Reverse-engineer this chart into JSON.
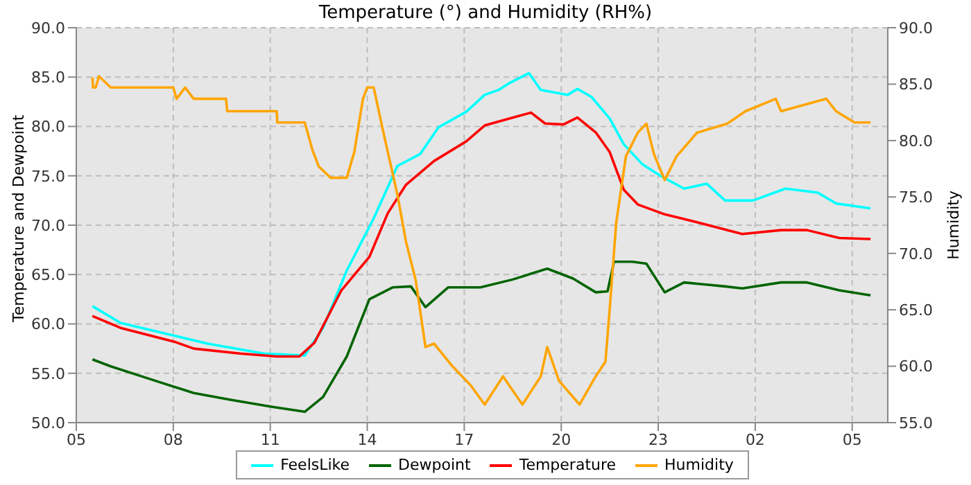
{
  "chart_data": {
    "type": "line",
    "title": "Temperature (°) and Humidity (RH%)",
    "ylabel": "Temperature and Dewpoint",
    "y2label": "Humidity",
    "xlim": [
      "--01-01T05:00",
      "--01-02T06:06"
    ],
    "xticks": [
      {
        "value": "--01-01T05:00",
        "label": "05"
      },
      {
        "value": "--01-01T08:00",
        "label": "08"
      },
      {
        "value": "--01-01T11:00",
        "label": "11"
      },
      {
        "value": "--01-01T14:00",
        "label": "14"
      },
      {
        "value": "--01-01T17:00",
        "label": "17"
      },
      {
        "value": "--01-01T20:00",
        "label": "20"
      },
      {
        "value": "--01-01T23:00",
        "label": "23"
      },
      {
        "value": "--01-02T02:00",
        "label": "02"
      },
      {
        "value": "--01-02T05:00",
        "label": "05"
      }
    ],
    "ylim": [
      50,
      90
    ],
    "yticks": [
      {
        "value": 50,
        "label": "50.0"
      },
      {
        "value": 55,
        "label": "55.0"
      },
      {
        "value": 60,
        "label": "60.0"
      },
      {
        "value": 65,
        "label": "65.0"
      },
      {
        "value": 70,
        "label": "70.0"
      },
      {
        "value": 75,
        "label": "75.0"
      },
      {
        "value": 80,
        "label": "80.0"
      },
      {
        "value": 85,
        "label": "85.0"
      },
      {
        "value": 90,
        "label": "90.0"
      }
    ],
    "y2lim": [
      55,
      90
    ],
    "y2ticks": [
      {
        "value": 55,
        "label": "55.0"
      },
      {
        "value": 60,
        "label": "60.0"
      },
      {
        "value": 65,
        "label": "65.0"
      },
      {
        "value": 70,
        "label": "70.0"
      },
      {
        "value": 75,
        "label": "75.0"
      },
      {
        "value": 80,
        "label": "80.0"
      },
      {
        "value": 85,
        "label": "85.0"
      },
      {
        "value": 90,
        "label": "90.0"
      }
    ],
    "grid": true,
    "legend": "bottom",
    "marker": "none",
    "line_style": "solid",
    "series": [
      {
        "name": "FeelsLike",
        "color": "#00ffff",
        "x": [
          "--01-01T05:30",
          "--01-01T06:22",
          "--01-01T08:02",
          "--01-01T09:04",
          "--01-01T10:48",
          "--01-01T12:04",
          "--01-01T12:38",
          "--01-01T13:22",
          "--01-01T14:12",
          "--01-01T14:56",
          "--01-01T15:38",
          "--01-01T16:12",
          "--01-01T17:04",
          "--01-01T17:38",
          "--01-01T18:04",
          "--01-01T18:24",
          "--01-01T19:00",
          "--01-01T19:22",
          "--01-01T20:12",
          "--01-01T20:30",
          "--01-01T20:56",
          "--01-01T21:30",
          "--01-01T21:56",
          "--01-01T22:30",
          "--01-01T23:04",
          "--01-01T23:48",
          "--01-02T00:30",
          "--01-02T01:04",
          "--01-02T01:56",
          "--01-02T02:56",
          "--01-02T03:56",
          "--01-02T04:30",
          "--01-02T05:34"
        ],
        "values": [
          61.8,
          60.1,
          58.8,
          58.0,
          57.0,
          56.8,
          59.6,
          65.4,
          70.7,
          76.0,
          77.2,
          79.9,
          81.5,
          83.2,
          83.7,
          84.4,
          85.4,
          83.7,
          83.2,
          83.8,
          83.0,
          80.8,
          78.2,
          76.2,
          75.0,
          73.7,
          74.2,
          72.5,
          72.5,
          73.7,
          73.3,
          72.2,
          71.7
        ]
      },
      {
        "name": "Dewpoint",
        "color": "#006400",
        "x": [
          "--01-01T05:30",
          "--01-01T06:04",
          "--01-01T07:12",
          "--01-01T08:38",
          "--01-01T09:48",
          "--01-01T11:04",
          "--01-01T12:04",
          "--01-01T12:38",
          "--01-01T13:22",
          "--01-01T14:04",
          "--01-01T14:47",
          "--01-01T15:21",
          "--01-01T15:48",
          "--01-01T16:30",
          "--01-01T17:30",
          "--01-01T18:30",
          "--01-01T19:34",
          "--01-01T20:22",
          "--01-01T21:04",
          "--01-01T21:26",
          "--01-01T21:38",
          "--01-01T22:12",
          "--01-01T22:38",
          "--01-01T23:12",
          "--01-01T23:48",
          "--01-02T01:04",
          "--01-02T01:36",
          "--01-02T02:48",
          "--01-02T03:36",
          "--01-02T04:36",
          "--01-02T05:34"
        ],
        "values": [
          56.4,
          55.7,
          54.5,
          53.0,
          52.3,
          51.6,
          51.1,
          52.6,
          56.7,
          62.5,
          63.7,
          63.8,
          61.7,
          63.7,
          63.7,
          64.5,
          65.6,
          64.6,
          63.2,
          63.3,
          66.3,
          66.3,
          66.1,
          63.2,
          64.2,
          63.8,
          63.6,
          64.2,
          64.2,
          63.4,
          62.9
        ]
      },
      {
        "name": "Temperature",
        "color": "#ff0000",
        "x": [
          "--01-01T05:30",
          "--01-01T06:22",
          "--01-01T08:02",
          "--01-01T08:38",
          "--01-01T10:04",
          "--01-01T11:12",
          "--01-01T11:54",
          "--01-01T12:22",
          "--01-01T13:12",
          "--01-01T14:04",
          "--01-01T14:38",
          "--01-01T15:12",
          "--01-01T16:04",
          "--01-01T17:04",
          "--01-01T17:38",
          "--01-01T18:30",
          "--01-01T19:04",
          "--01-01T19:30",
          "--01-01T20:04",
          "--01-01T20:30",
          "--01-01T21:04",
          "--01-01T21:30",
          "--01-01T21:56",
          "--01-01T22:22",
          "--01-01T23:12",
          "--01-02T00:12",
          "--01-02T01:36",
          "--01-02T02:48",
          "--01-02T03:36",
          "--01-02T04:36",
          "--01-02T05:34"
        ],
        "values": [
          60.8,
          59.6,
          58.2,
          57.5,
          57.0,
          56.7,
          56.7,
          58.1,
          63.4,
          66.8,
          71.2,
          74.1,
          76.5,
          78.5,
          80.1,
          80.9,
          81.4,
          80.3,
          80.2,
          80.9,
          79.4,
          77.4,
          73.6,
          72.1,
          71.1,
          70.3,
          69.1,
          69.5,
          69.5,
          68.7,
          68.6
        ]
      },
      {
        "name": "Humidity",
        "color": "#ffa500",
        "axis": "y2",
        "x": [
          "--01-01T05:30",
          "--01-01T05:31",
          "--01-01T05:36",
          "--01-01T05:42",
          "--01-01T06:04",
          "--01-01T08:00",
          "--01-01T08:06",
          "--01-01T08:22",
          "--01-01T08:38",
          "--01-01T09:38",
          "--01-01T09:40",
          "--01-01T11:12",
          "--01-01T11:13",
          "--01-01T12:04",
          "--01-01T12:18",
          "--01-01T12:30",
          "--01-01T12:52",
          "--01-01T13:22",
          "--01-01T13:36",
          "--01-01T13:52",
          "--01-01T14:00",
          "--01-01T14:12",
          "--01-01T14:30",
          "--01-01T14:56",
          "--01-01T15:12",
          "--01-01T15:30",
          "--01-01T15:48",
          "--01-01T16:04",
          "--01-01T16:38",
          "--01-01T17:12",
          "--01-01T17:38",
          "--01-01T18:12",
          "--01-01T18:48",
          "--01-01T19:22",
          "--01-01T19:34",
          "--01-01T19:56",
          "--01-01T20:34",
          "--01-01T21:04",
          "--01-01T21:22",
          "--01-01T21:30",
          "--01-01T21:42",
          "--01-01T22:00",
          "--01-01T22:22",
          "--01-01T22:38",
          "--01-01T22:52",
          "--01-01T23:12",
          "--01-01T23:34",
          "--01-02T00:12",
          "--01-02T01:08",
          "--01-02T01:42",
          "--01-02T02:38",
          "--01-02T02:48",
          "--01-02T04:12",
          "--01-02T04:30",
          "--01-02T05:04",
          "--01-02T05:34"
        ],
        "values": [
          85.6,
          84.7,
          84.7,
          85.7,
          84.7,
          84.7,
          83.7,
          84.7,
          83.7,
          83.7,
          82.6,
          82.6,
          81.6,
          81.6,
          79.2,
          77.7,
          76.7,
          76.7,
          79.0,
          83.7,
          84.7,
          84.7,
          80.7,
          75.2,
          71.0,
          67.6,
          61.7,
          62.0,
          60.0,
          58.3,
          56.6,
          59.1,
          56.6,
          59.1,
          61.7,
          58.7,
          56.6,
          59.1,
          60.4,
          65.1,
          72.7,
          78.6,
          80.7,
          81.5,
          78.8,
          76.5,
          78.6,
          80.7,
          81.5,
          82.6,
          83.7,
          82.6,
          83.7,
          82.6,
          81.6,
          81.6
        ]
      }
    ]
  }
}
